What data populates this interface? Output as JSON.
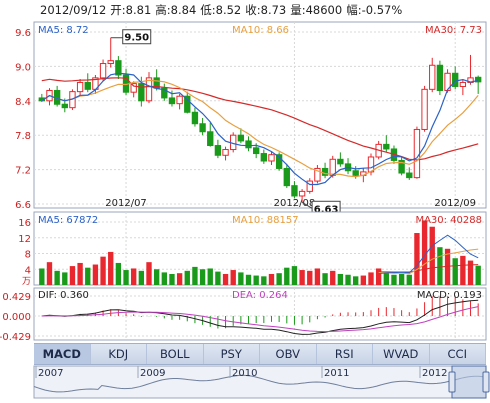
{
  "header": {
    "date": "2012/09/12",
    "open_label": "开:",
    "open": "8.81",
    "high_label": "高:",
    "high": "8.84",
    "low_label": "低:",
    "low": "8.52",
    "close_label": "收:",
    "close": "8.73",
    "volume_label": "量:",
    "volume": "48600",
    "change_label": "幅:",
    "change": "-0.57%"
  },
  "price_panel": {
    "ma5_label": "MA5: 8.72",
    "ma10_label": "MA10: 8.66",
    "ma30_label": "MA30: 7.73",
    "high_marker": "9.50",
    "low_marker": "6.63",
    "y_ticks": [
      "9.6",
      "9.0",
      "8.4",
      "7.8",
      "7.2",
      "6.6"
    ],
    "x_ticks": [
      "2012/07",
      "2012/08",
      "2012/09"
    ]
  },
  "volume_panel": {
    "ma5_label": "MA5: 67872",
    "ma10_label": "MA10: 88157",
    "ma30_label": "MA30: 40288",
    "y_ticks": [
      "16",
      "12",
      "8",
      "4"
    ],
    "unit": "万"
  },
  "macd_panel": {
    "dif_label": "DIF: 0.360",
    "dea_label": "DEA: 0.264",
    "macd_label": "MACD: 0.193",
    "y_ticks": [
      "0.429",
      "0.000",
      "-0.429"
    ]
  },
  "tabs": [
    "MACD",
    "KDJ",
    "BOLL",
    "PSY",
    "OBV",
    "RSI",
    "WVAD",
    "CCI"
  ],
  "active_tab": "MACD",
  "navigator": {
    "year_labels": [
      "2007",
      "2009",
      "2010",
      "2011",
      "2012"
    ]
  },
  "colors": {
    "up": "#e8282e",
    "down": "#1a9a1a",
    "ma5": "#2b62c8",
    "ma10": "#e8a040",
    "ma30": "#d42a2a",
    "dif": "#222222",
    "dea": "#c040c0",
    "grid": "#d8d8d8",
    "axis_text": "#cc2020"
  },
  "chart_data": {
    "type": "candlestick",
    "title": "",
    "ohlc": [
      [
        8.45,
        8.52,
        8.38,
        8.4
      ],
      [
        8.4,
        8.62,
        8.32,
        8.58
      ],
      [
        8.58,
        8.66,
        8.3,
        8.34
      ],
      [
        8.34,
        8.44,
        8.2,
        8.28
      ],
      [
        8.28,
        8.6,
        8.24,
        8.56
      ],
      [
        8.56,
        8.78,
        8.5,
        8.72
      ],
      [
        8.72,
        8.88,
        8.55,
        8.6
      ],
      [
        8.6,
        8.85,
        8.52,
        8.8
      ],
      [
        8.8,
        9.12,
        8.74,
        9.05
      ],
      [
        9.05,
        9.5,
        8.98,
        9.1
      ],
      [
        9.1,
        9.18,
        8.78,
        8.85
      ],
      [
        8.85,
        8.96,
        8.5,
        8.55
      ],
      [
        8.55,
        8.74,
        8.46,
        8.7
      ],
      [
        8.7,
        8.82,
        8.3,
        8.4
      ],
      [
        8.4,
        8.9,
        8.36,
        8.8
      ],
      [
        8.8,
        8.95,
        8.58,
        8.62
      ],
      [
        8.62,
        8.7,
        8.4,
        8.45
      ],
      [
        8.45,
        8.58,
        8.3,
        8.35
      ],
      [
        8.35,
        8.52,
        8.25,
        8.48
      ],
      [
        8.48,
        8.56,
        8.18,
        8.2
      ],
      [
        8.2,
        8.28,
        7.95,
        8.0
      ],
      [
        8.0,
        8.1,
        7.8,
        7.86
      ],
      [
        7.86,
        8.02,
        7.6,
        7.62
      ],
      [
        7.62,
        7.72,
        7.4,
        7.45
      ],
      [
        7.45,
        7.6,
        7.36,
        7.55
      ],
      [
        7.55,
        7.85,
        7.5,
        7.8
      ],
      [
        7.8,
        7.92,
        7.66,
        7.7
      ],
      [
        7.7,
        7.78,
        7.52,
        7.58
      ],
      [
        7.58,
        7.66,
        7.4,
        7.48
      ],
      [
        7.48,
        7.55,
        7.3,
        7.35
      ],
      [
        7.35,
        7.52,
        7.28,
        7.46
      ],
      [
        7.46,
        7.5,
        7.18,
        7.22
      ],
      [
        7.22,
        7.3,
        6.88,
        6.92
      ],
      [
        6.92,
        7.0,
        6.7,
        6.74
      ],
      [
        6.74,
        6.86,
        6.63,
        6.82
      ],
      [
        6.82,
        7.05,
        6.78,
        7.0
      ],
      [
        7.0,
        7.28,
        6.96,
        7.22
      ],
      [
        7.22,
        7.32,
        7.05,
        7.1
      ],
      [
        7.1,
        7.44,
        7.06,
        7.38
      ],
      [
        7.38,
        7.5,
        7.25,
        7.3
      ],
      [
        7.3,
        7.4,
        7.12,
        7.18
      ],
      [
        7.18,
        7.26,
        7.04,
        7.1
      ],
      [
        7.1,
        7.22,
        6.98,
        7.16
      ],
      [
        7.16,
        7.48,
        7.1,
        7.42
      ],
      [
        7.42,
        7.7,
        7.38,
        7.64
      ],
      [
        7.64,
        7.8,
        7.5,
        7.56
      ],
      [
        7.56,
        7.62,
        7.3,
        7.36
      ],
      [
        7.36,
        7.42,
        7.1,
        7.14
      ],
      [
        7.14,
        7.24,
        7.02,
        7.06
      ],
      [
        7.06,
        7.95,
        7.04,
        7.9
      ],
      [
        7.9,
        8.66,
        7.86,
        8.6
      ],
      [
        8.6,
        9.15,
        8.55,
        9.02
      ],
      [
        9.02,
        9.1,
        8.5,
        8.58
      ],
      [
        8.58,
        8.95,
        8.54,
        8.88
      ],
      [
        8.88,
        9.0,
        8.6,
        8.65
      ],
      [
        8.65,
        8.78,
        8.5,
        8.72
      ],
      [
        8.72,
        9.2,
        8.68,
        8.8
      ],
      [
        8.81,
        8.84,
        8.52,
        8.73
      ]
    ],
    "volume": [
      4.2,
      5.8,
      3.6,
      3.2,
      4.8,
      5.6,
      4.4,
      5.2,
      7.2,
      8.4,
      5.6,
      3.8,
      4.2,
      3.6,
      5.8,
      4.0,
      3.2,
      2.8,
      3.0,
      3.6,
      4.6,
      4.0,
      4.2,
      3.4,
      2.8,
      3.8,
      3.2,
      2.6,
      2.4,
      2.2,
      2.8,
      3.0,
      4.4,
      4.8,
      3.8,
      3.6,
      4.2,
      3.0,
      3.6,
      2.8,
      2.6,
      2.2,
      2.4,
      3.2,
      4.2,
      3.4,
      2.6,
      2.8,
      2.6,
      13.2,
      16.4,
      14.8,
      9.6,
      9.2,
      6.8,
      7.4,
      6.2,
      4.9
    ],
    "y_range": [
      6.6,
      9.6
    ],
    "volume_range": [
      0,
      16
    ],
    "macd_range": [
      -0.429,
      0.429
    ],
    "grid": true,
    "legend_position": "top"
  }
}
